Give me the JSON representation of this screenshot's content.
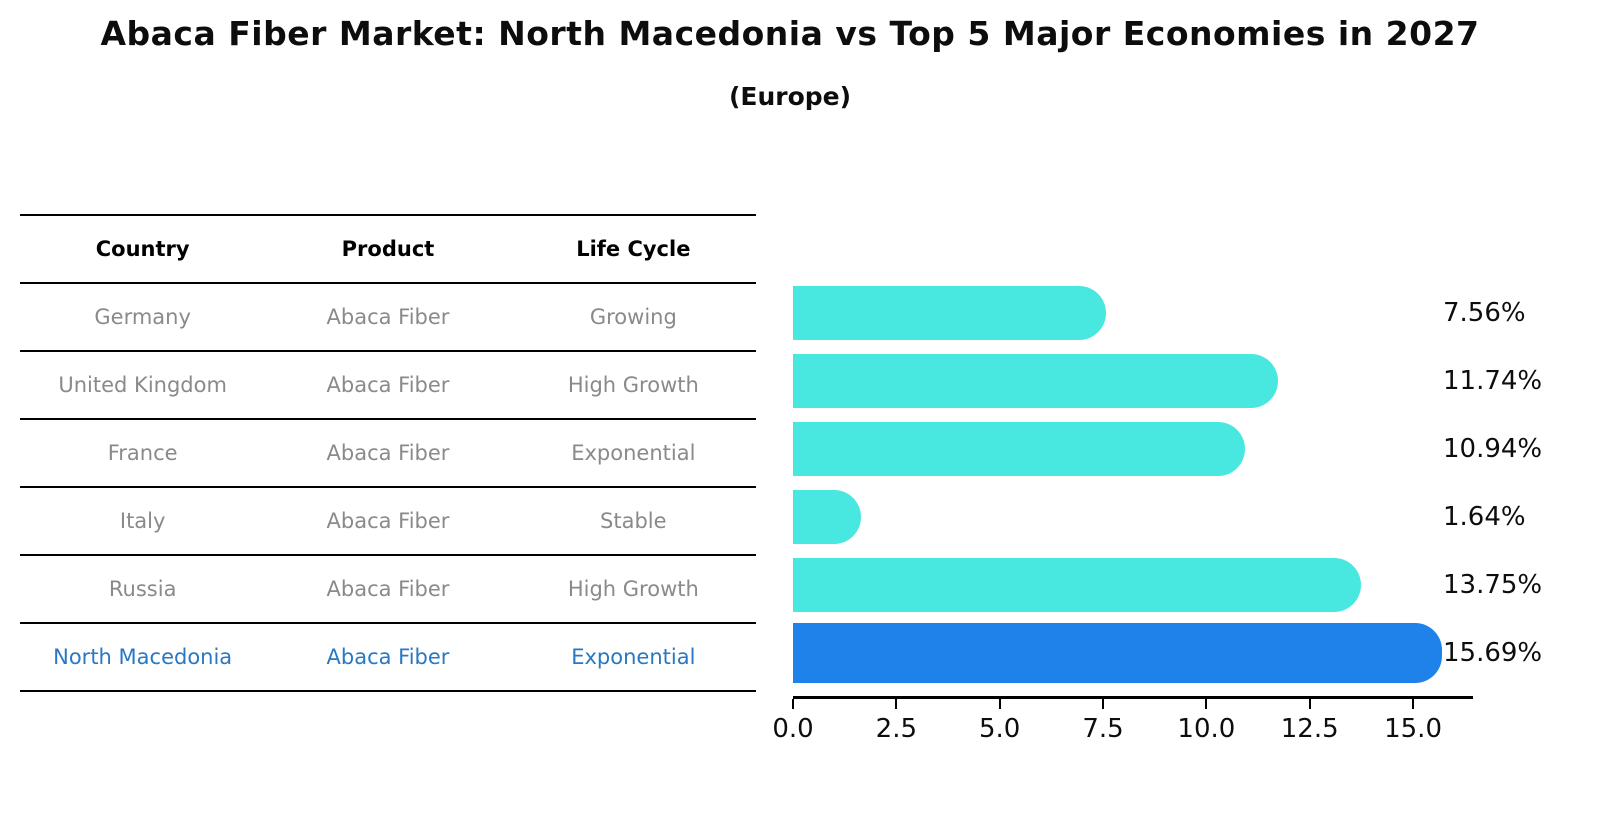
{
  "table": {
    "headers": {
      "country": "Country",
      "product": "Product",
      "life_cycle": "Life Cycle"
    },
    "rows": [
      {
        "country": "Germany",
        "product": "Abaca Fiber",
        "life_cycle": "Growing",
        "highlighted": false
      },
      {
        "country": "United Kingdom",
        "product": "Abaca Fiber",
        "life_cycle": "High Growth",
        "highlighted": false
      },
      {
        "country": "France",
        "product": "Abaca Fiber",
        "life_cycle": "Exponential",
        "highlighted": false
      },
      {
        "country": "Italy",
        "product": "Abaca Fiber",
        "life_cycle": "Stable",
        "highlighted": false
      },
      {
        "country": "Russia",
        "product": "Abaca Fiber",
        "life_cycle": "High Growth",
        "highlighted": false
      },
      {
        "country": "North Macedonia",
        "product": "Abaca Fiber",
        "life_cycle": "Exponential",
        "highlighted": true
      }
    ]
  },
  "chart_data": {
    "type": "bar",
    "orientation": "horizontal",
    "title": "Abaca Fiber Market: North Macedonia vs Top 5 Major Economies in 2027",
    "subtitle": "(Europe)",
    "categories": [
      "Germany",
      "United Kingdom",
      "France",
      "Italy",
      "Russia",
      "North Macedonia"
    ],
    "values": [
      7.56,
      11.74,
      10.94,
      1.64,
      13.75,
      15.69
    ],
    "value_labels": [
      "7.56%",
      "11.74%",
      "10.94%",
      "1.64%",
      "13.75%",
      "15.69%"
    ],
    "x_tick_labels": [
      "0.0",
      "2.5",
      "5.0",
      "7.5",
      "10.0",
      "12.5",
      "15.0"
    ],
    "x_tick_values": [
      0,
      2.5,
      5,
      7.5,
      10,
      12.5,
      15
    ],
    "xlim": [
      0,
      16.45
    ],
    "highlight_index": 5,
    "grid": false,
    "legend": false,
    "colors": {
      "bar_default": "#48e8e0",
      "bar_highlight": "#1f82ea",
      "highlight_text": "#2878c4",
      "row_text": "#8a8a8a",
      "axis": "#000000"
    }
  }
}
